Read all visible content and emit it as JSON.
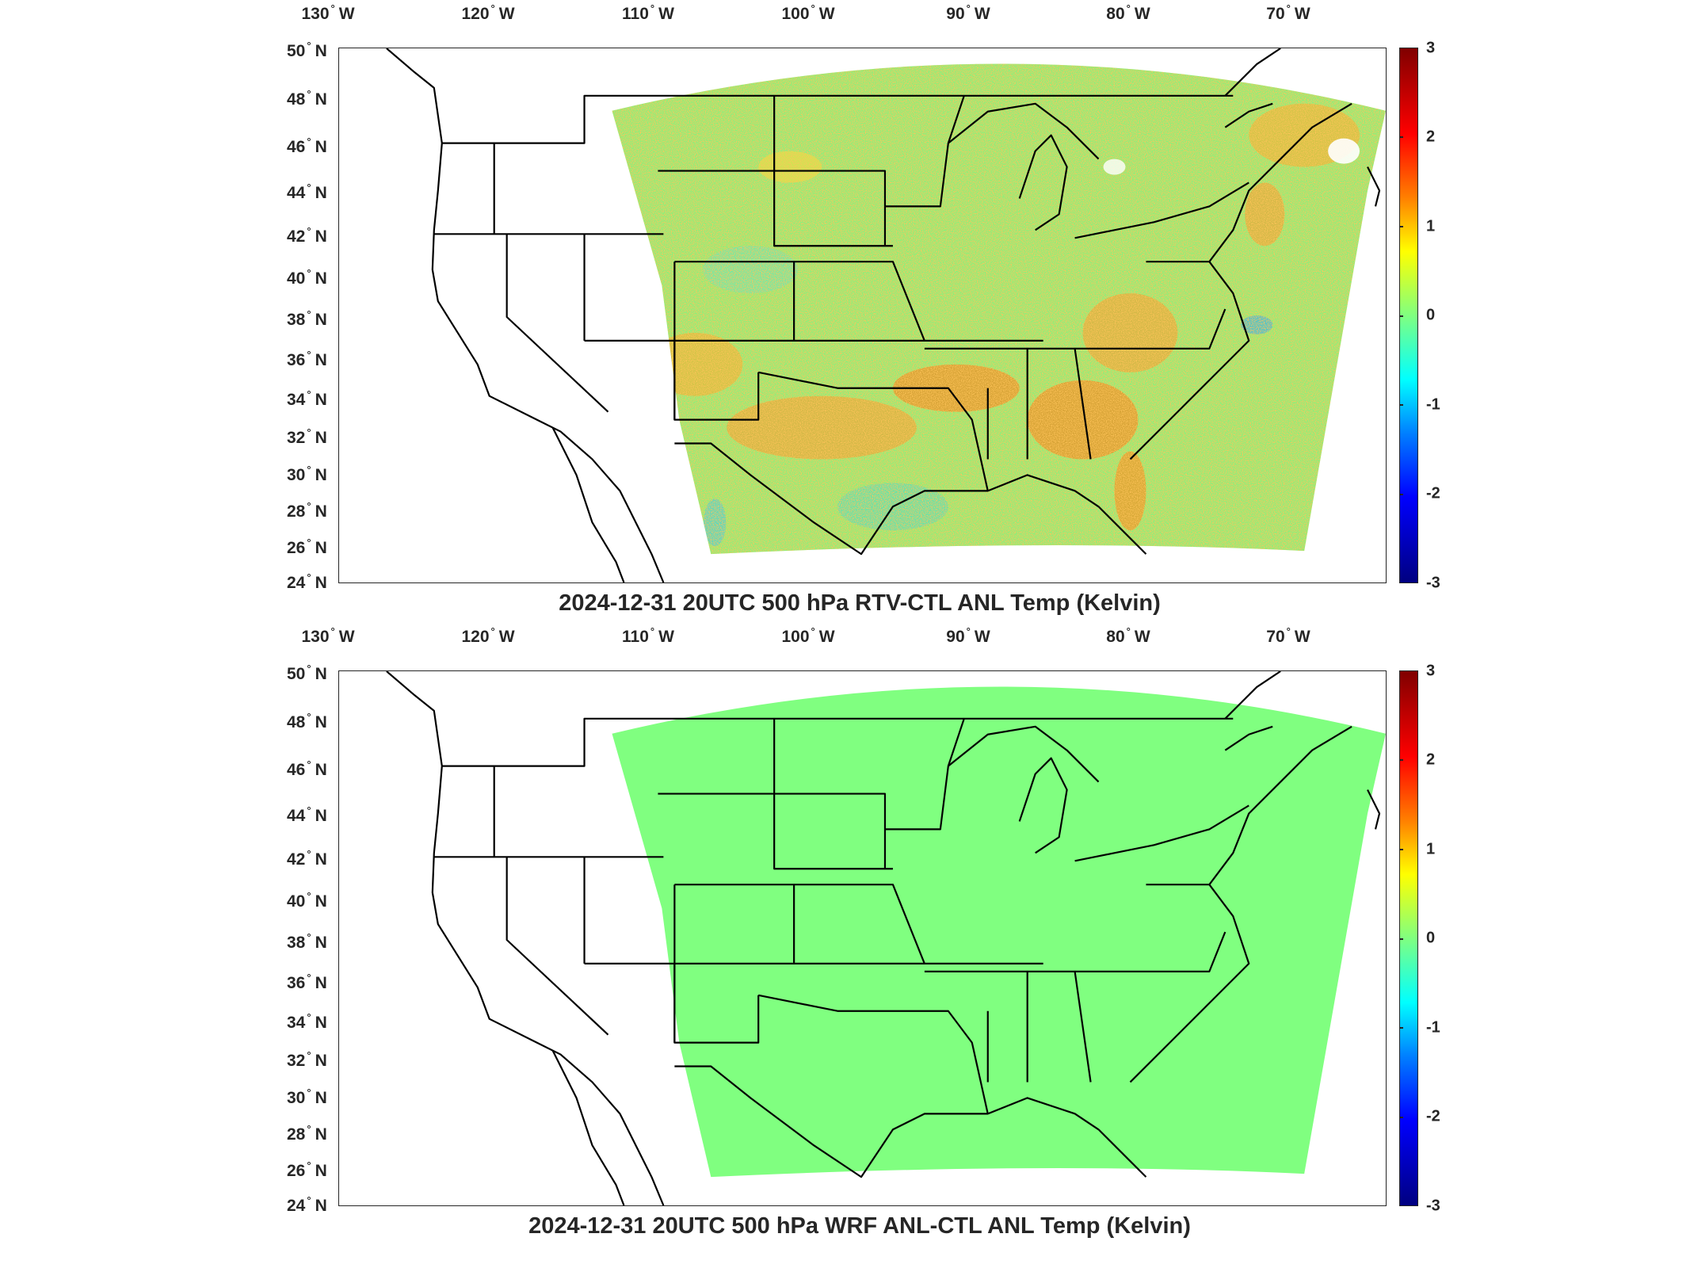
{
  "colors": {
    "outline": "#000000",
    "zero_green": "#7dff7d",
    "frame": "#262626"
  },
  "panels": [
    {
      "title": "2024-12-31 20UTC 500 hPa RTV-CTL ANL Temp (Kelvin)",
      "field": "variable",
      "lon_labels": [
        "130",
        "120",
        "110",
        "100",
        "90",
        "80",
        "70"
      ],
      "lon_hemi": "W",
      "lat_labels": [
        "50",
        "48",
        "46",
        "44",
        "42",
        "40",
        "38",
        "36",
        "34",
        "32",
        "30",
        "28",
        "26",
        "24"
      ],
      "lat_hemi": "N",
      "colorbar_ticks": [
        "3",
        "2",
        "1",
        "0",
        "-1",
        "-2",
        "-3"
      ]
    },
    {
      "title": "2024-12-31 20UTC 500 hPa WRF ANL-CTL ANL Temp (Kelvin)",
      "field": "uniform",
      "lon_labels": [
        "130",
        "120",
        "110",
        "100",
        "90",
        "80",
        "70"
      ],
      "lon_hemi": "W",
      "lat_labels": [
        "50",
        "48",
        "46",
        "44",
        "42",
        "40",
        "38",
        "36",
        "34",
        "32",
        "30",
        "28",
        "26",
        "24"
      ],
      "lat_hemi": "N",
      "colorbar_ticks": [
        "3",
        "2",
        "1",
        "0",
        "-1",
        "-2",
        "-3"
      ]
    }
  ]
}
